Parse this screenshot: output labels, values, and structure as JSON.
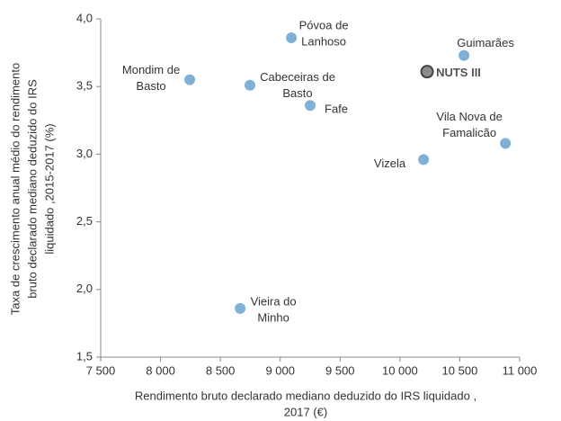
{
  "chart_data": {
    "type": "scatter",
    "x_label": [
      "Rendimento bruto declarado mediano deduzido do IRS liquidado ,",
      "2017 (€)"
    ],
    "y_label": [
      "Taxa de crescimento anual médio do rendimento",
      "bruto declarado mediano deduzido do IRS",
      "liquidado ,2015-2017 (%)"
    ],
    "xlim": [
      7500,
      11000
    ],
    "xticks": [
      {
        "value": 7500,
        "label": "7 500"
      },
      {
        "value": 8000,
        "label": "8 000"
      },
      {
        "value": 8500,
        "label": "8 500"
      },
      {
        "value": 9000,
        "label": "9 000"
      },
      {
        "value": 9500,
        "label": "9 500"
      },
      {
        "value": 10000,
        "label": "10 000"
      },
      {
        "value": 10500,
        "label": "10 500"
      },
      {
        "value": 11000,
        "label": "11 000"
      }
    ],
    "ylim": [
      1.5,
      4.0
    ],
    "yticks": [
      {
        "value": 1.5,
        "label": "1,5"
      },
      {
        "value": 2.0,
        "label": "2,0"
      },
      {
        "value": 2.5,
        "label": "2,5"
      },
      {
        "value": 3.0,
        "label": "3,0"
      },
      {
        "value": 3.5,
        "label": "3,5"
      },
      {
        "value": 4.0,
        "label": "4,0"
      }
    ],
    "grid": false,
    "points": [
      {
        "label": [
          "Mondim de",
          "Basto"
        ],
        "x": 8244,
        "y": 3.55,
        "color": "#7fb1d6"
      },
      {
        "label": [
          "Cabeceiras de",
          "Basto"
        ],
        "x": 8747,
        "y": 3.51,
        "color": "#7fb1d6"
      },
      {
        "label": [
          "Póvoa de",
          "Lanhoso"
        ],
        "x": 9093,
        "y": 3.86,
        "color": "#7fb1d6"
      },
      {
        "label": [
          "Fafe"
        ],
        "x": 9250,
        "y": 3.36,
        "color": "#7fb1d6"
      },
      {
        "label": [
          "Vieira do",
          "Minho"
        ],
        "x": 8665,
        "y": 1.86,
        "color": "#7fb1d6"
      },
      {
        "label": [
          "Guimarães"
        ],
        "x": 10535,
        "y": 3.73,
        "color": "#7fb1d6"
      },
      {
        "label": [
          "NUTS III"
        ],
        "x": 10227,
        "y": 3.61,
        "color": "#8c8c8c",
        "highlight": true
      },
      {
        "label": [
          "Vizela"
        ],
        "x": 10197,
        "y": 2.96,
        "color": "#7fb1d6"
      },
      {
        "label": [
          "Vila Nova de",
          "Famalicão"
        ],
        "x": 10881,
        "y": 3.08,
        "color": "#7fb1d6"
      }
    ]
  }
}
